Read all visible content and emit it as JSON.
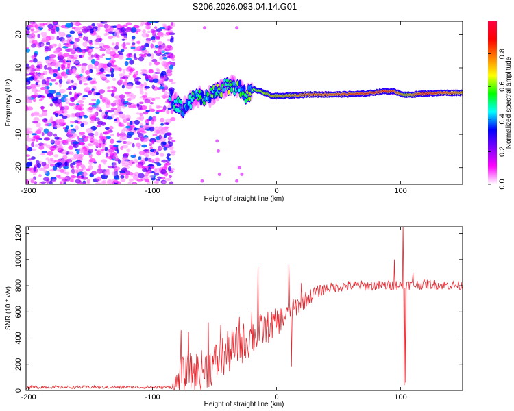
{
  "title": "S206.2026.093.04.14.G01",
  "chart_data": [
    {
      "type": "heatmap",
      "xlabel": "Height of straight line (km)",
      "ylabel": "Frequency (Hz)",
      "xlim": [
        -202,
        150
      ],
      "ylim": [
        -25,
        24
      ],
      "xticks": [
        -200,
        -100,
        0,
        100
      ],
      "yticks": [
        20,
        10,
        0,
        -10,
        -20
      ],
      "colorbar": {
        "label": "Normalized spectral amplitude",
        "range": [
          0,
          1
        ],
        "ticks": [
          0.0,
          0.2,
          0.4,
          0.6,
          0.8
        ],
        "colors": [
          "#ffffff",
          "#ff00ff",
          "#8000ff",
          "#0000ff",
          "#00ffff",
          "#00ff00",
          "#ffff00",
          "#ff8000",
          "#ff0000",
          "#ff0040"
        ]
      },
      "noise_region_x": [
        -202,
        -87
      ],
      "ridge": [
        {
          "x": -86,
          "f": 1.0,
          "a": 0.45
        },
        {
          "x": -80,
          "f": -1.0,
          "a": 0.5
        },
        {
          "x": -75,
          "f": -2.0,
          "a": 0.45
        },
        {
          "x": -70,
          "f": 0.0,
          "a": 0.5
        },
        {
          "x": -63,
          "f": 1.5,
          "a": 0.55
        },
        {
          "x": -57,
          "f": 0.5,
          "a": 0.5
        },
        {
          "x": -50,
          "f": 2.5,
          "a": 0.6
        },
        {
          "x": -44,
          "f": 4.0,
          "a": 0.6
        },
        {
          "x": -36,
          "f": 4.5,
          "a": 0.6
        },
        {
          "x": -30,
          "f": 3.5,
          "a": 0.55
        },
        {
          "x": -25,
          "f": 2.0,
          "a": 0.55
        },
        {
          "x": -18,
          "f": 3.5,
          "a": 0.65
        },
        {
          "x": -10,
          "f": 2.5,
          "a": 0.7
        },
        {
          "x": -3,
          "f": 1.5,
          "a": 0.75
        },
        {
          "x": 5,
          "f": 1.5,
          "a": 0.75
        },
        {
          "x": 15,
          "f": 1.8,
          "a": 0.8
        },
        {
          "x": 30,
          "f": 2.0,
          "a": 0.85
        },
        {
          "x": 50,
          "f": 2.0,
          "a": 0.85
        },
        {
          "x": 70,
          "f": 2.2,
          "a": 0.88
        },
        {
          "x": 88,
          "f": 3.0,
          "a": 0.9
        },
        {
          "x": 96,
          "f": 2.8,
          "a": 0.85
        },
        {
          "x": 104,
          "f": 1.8,
          "a": 0.75
        },
        {
          "x": 120,
          "f": 2.3,
          "a": 0.9
        },
        {
          "x": 135,
          "f": 2.5,
          "a": 0.85
        },
        {
          "x": 150,
          "f": 2.5,
          "a": 0.8
        }
      ]
    },
    {
      "type": "line",
      "xlabel": "Height of straight line (km)",
      "ylabel": "SNR (10 * v/v)",
      "xlim": [
        -202,
        150
      ],
      "ylim": [
        0,
        1250
      ],
      "xticks": [
        -200,
        -100,
        0,
        100
      ],
      "yticks": [
        0,
        200,
        400,
        600,
        800,
        1000,
        1200
      ],
      "color": "#e8262e",
      "envelope": [
        [
          -202,
          25
        ],
        [
          -90,
          25
        ],
        [
          -82,
          30
        ],
        [
          -78,
          120
        ],
        [
          -70,
          150
        ],
        [
          -60,
          170
        ],
        [
          -50,
          220
        ],
        [
          -40,
          300
        ],
        [
          -30,
          360
        ],
        [
          -20,
          420
        ],
        [
          -10,
          480
        ],
        [
          0,
          530
        ],
        [
          10,
          600
        ],
        [
          20,
          680
        ],
        [
          30,
          740
        ],
        [
          40,
          780
        ],
        [
          60,
          800
        ],
        [
          80,
          800
        ],
        [
          100,
          805
        ],
        [
          120,
          810
        ],
        [
          150,
          800
        ]
      ],
      "noise_scale": [
        [
          -202,
          12
        ],
        [
          -85,
          12
        ],
        [
          -80,
          140
        ],
        [
          -60,
          160
        ],
        [
          -40,
          170
        ],
        [
          -20,
          150
        ],
        [
          0,
          110
        ],
        [
          20,
          70
        ],
        [
          40,
          40
        ],
        [
          90,
          40
        ],
        [
          150,
          35
        ]
      ],
      "spikes": [
        {
          "x": -77,
          "y": 460
        },
        {
          "x": -71,
          "y": 450
        },
        {
          "x": -55,
          "y": 520
        },
        {
          "x": -45,
          "y": 500
        },
        {
          "x": -30,
          "y": 560
        },
        {
          "x": -20,
          "y": 600
        },
        {
          "x": -15,
          "y": 940
        },
        {
          "x": -10,
          "y": 560
        },
        {
          "x": 10,
          "y": 960
        },
        {
          "x": 12,
          "y": 180
        },
        {
          "x": 20,
          "y": 820
        },
        {
          "x": 95,
          "y": 1000
        },
        {
          "x": 102,
          "y": 1260
        },
        {
          "x": 103,
          "y": 40
        },
        {
          "x": 104,
          "y": 60
        },
        {
          "x": 110,
          "y": 900
        }
      ]
    }
  ]
}
